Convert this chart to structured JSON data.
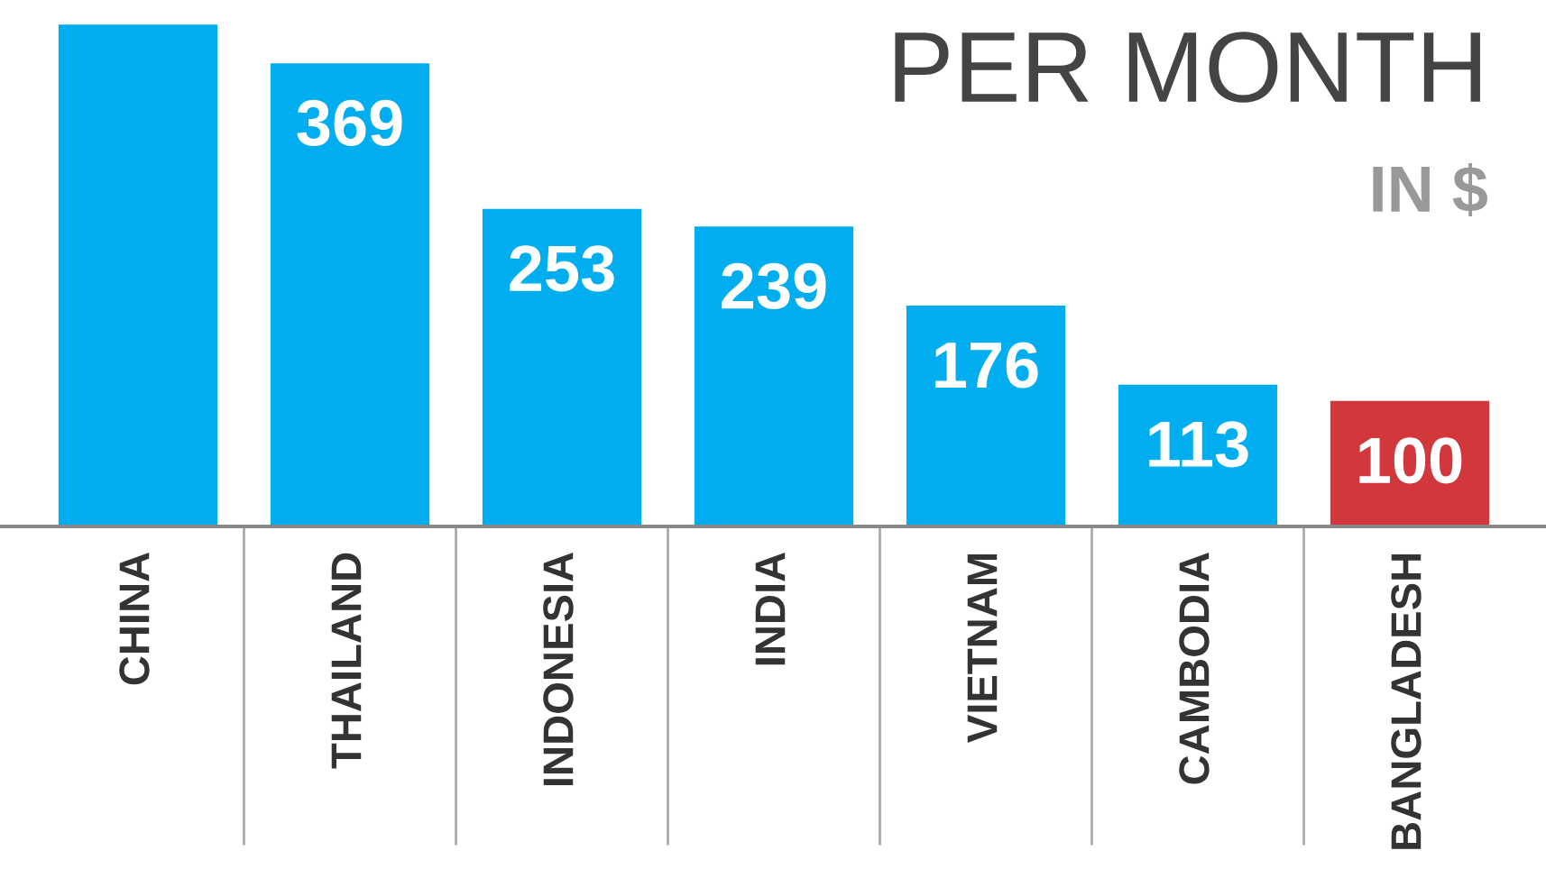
{
  "chart_data": {
    "type": "bar",
    "title": "PER MONTH",
    "subtitle": "IN $",
    "categories": [
      "CHINA",
      "THAILAND",
      "INDONESIA",
      "INDIA",
      "VIETNAM",
      "CAMBODIA",
      "BANGLADESH"
    ],
    "values": [
      400,
      369,
      253,
      239,
      176,
      113,
      100
    ],
    "value_labels": [
      null,
      "369",
      "253",
      "239",
      "176",
      "113",
      "100"
    ],
    "colors": [
      "#00aeef",
      "#00aeef",
      "#00aeef",
      "#00aeef",
      "#00aeef",
      "#00aeef",
      "#d2373c"
    ],
    "grid": false,
    "legend": false
  }
}
